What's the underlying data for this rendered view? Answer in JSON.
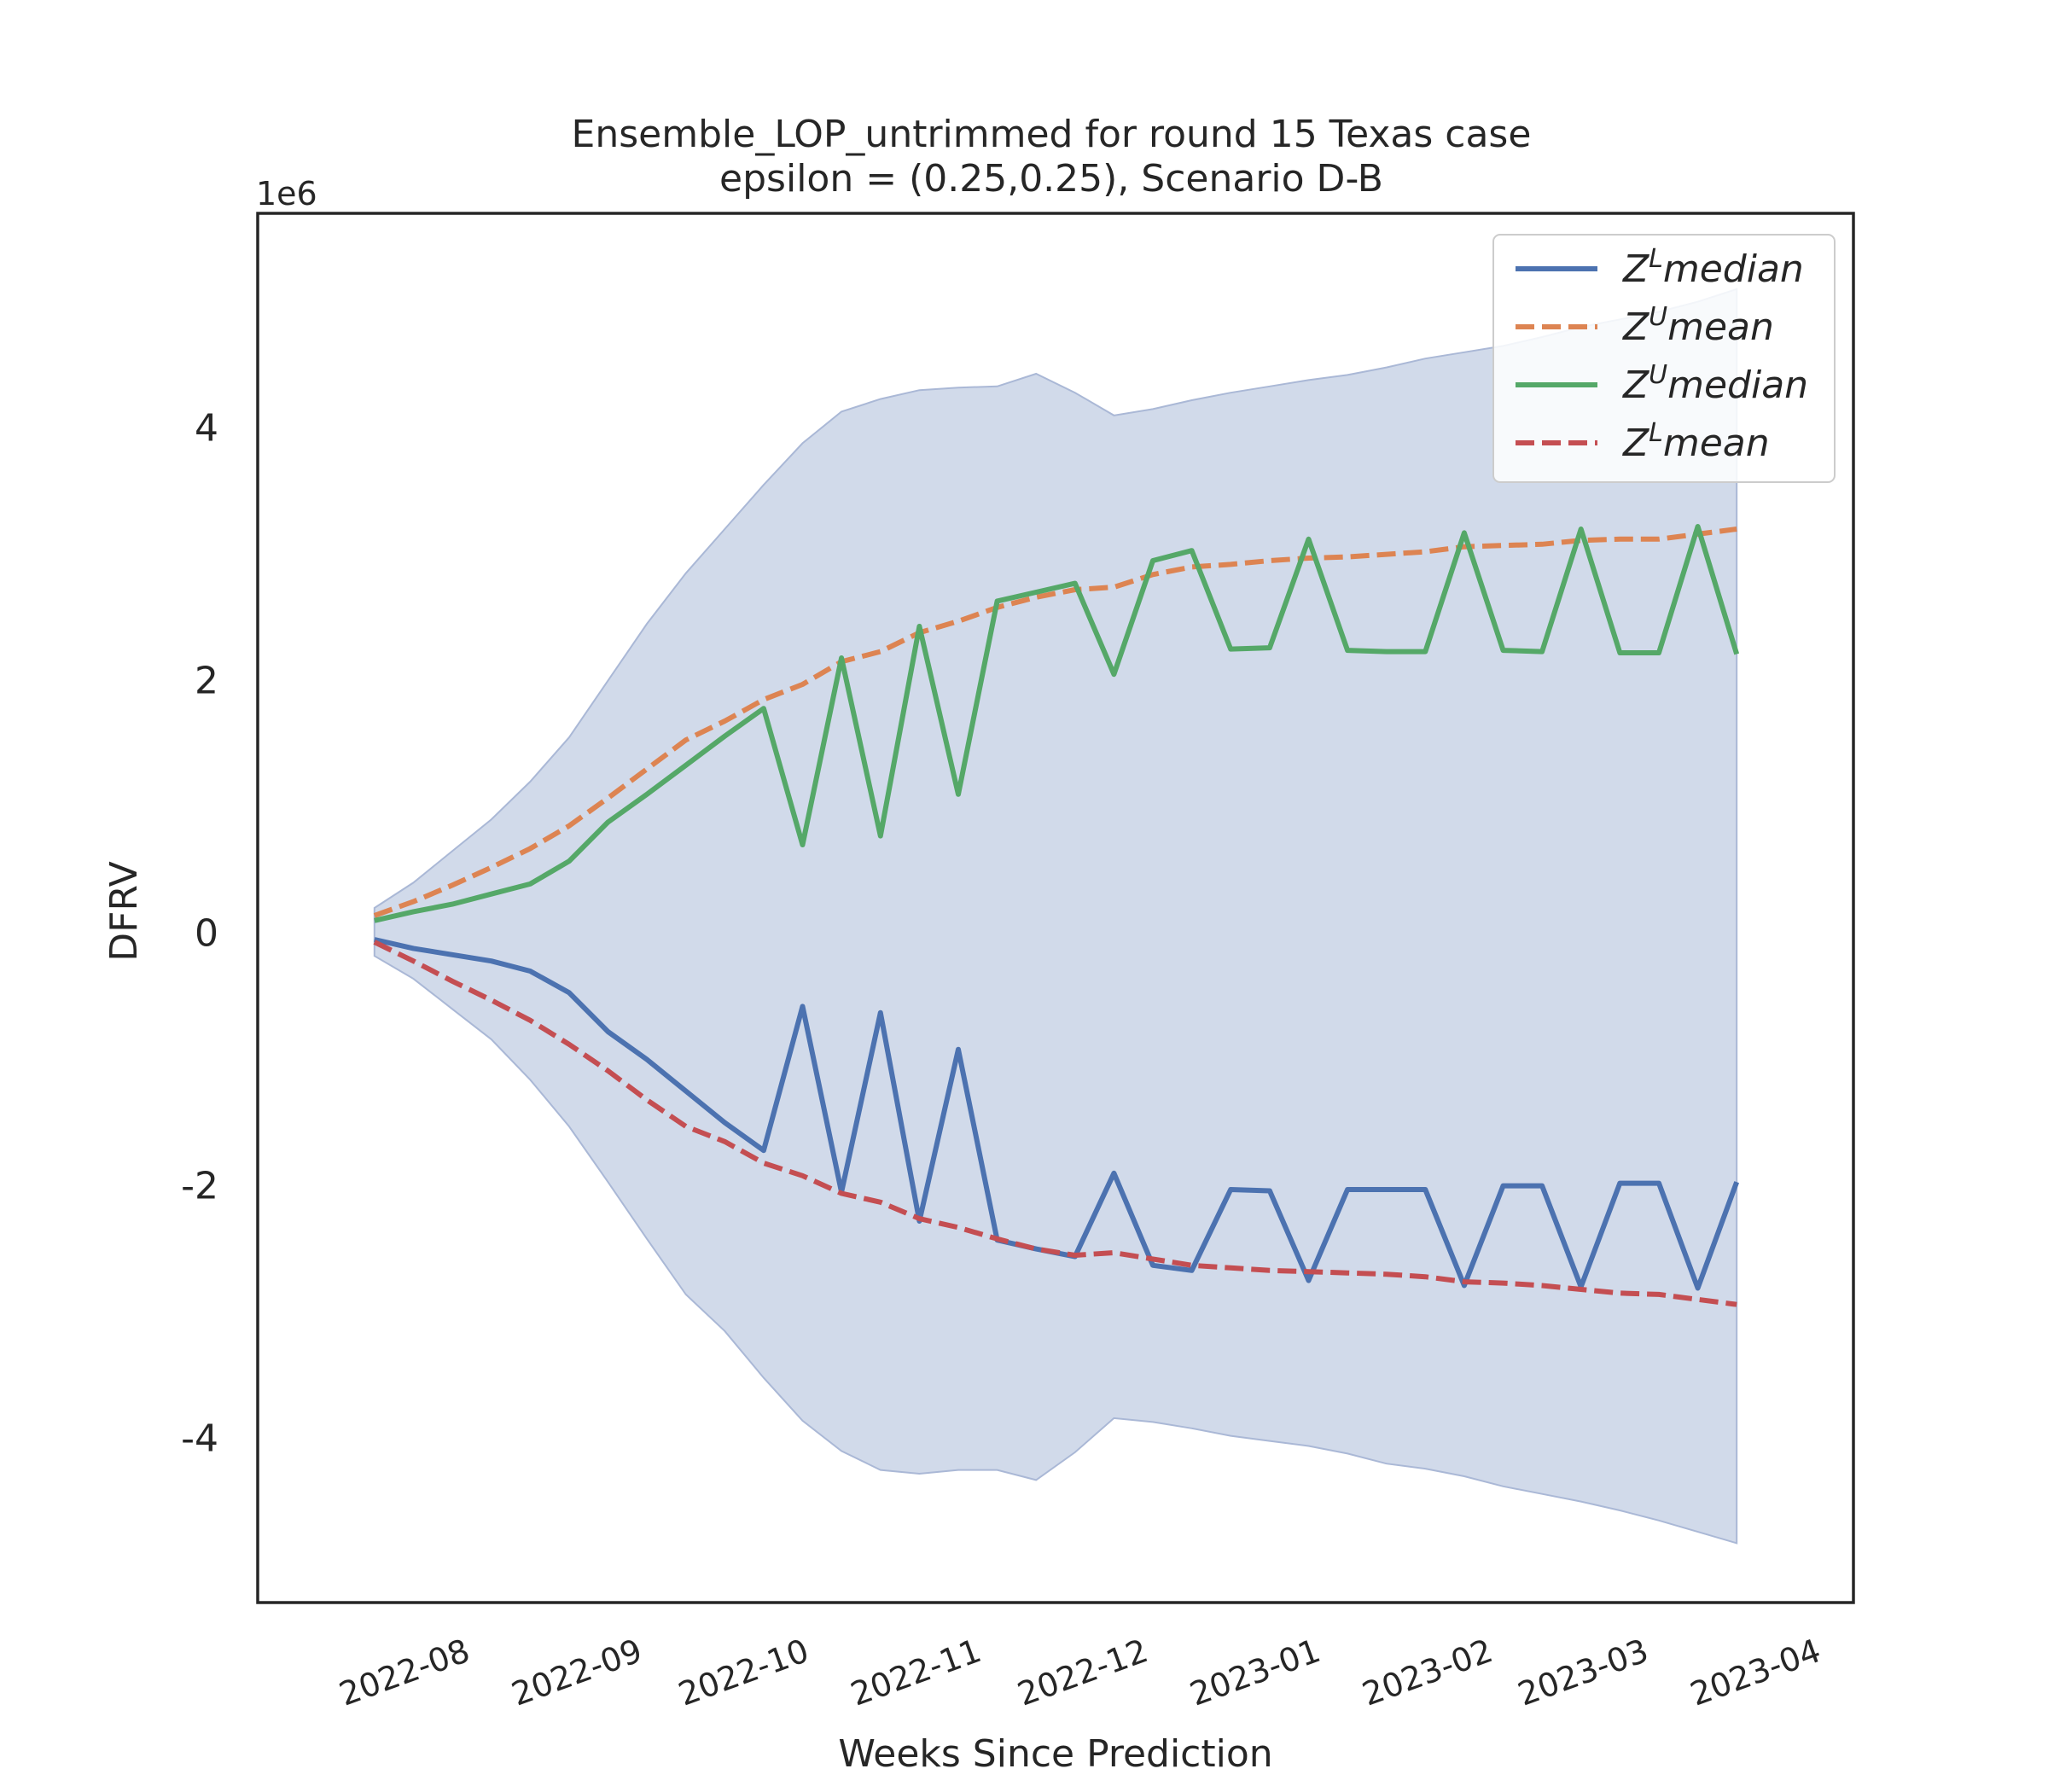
{
  "chart_data": {
    "type": "line",
    "title_line1": "Ensemble_LOP_untrimmed for round 15 Texas  case",
    "title_line2": "epsilon = (0.25,0.25), Scenario D-B",
    "xlabel": "Weeks Since Prediction",
    "ylabel": "DFRV",
    "y_offset_label": "1e6",
    "y_scale": 1000000,
    "xlim": [
      "2022-07-03",
      "2023-04-16"
    ],
    "ylim": [
      -5.3,
      5.7
    ],
    "grid": false,
    "legend_position": "top-right",
    "x_tick_labels": [
      "2022-08",
      "2022-09",
      "2022-10",
      "2022-11",
      "2022-12",
      "2023-01",
      "2023-02",
      "2023-03",
      "2023-04"
    ],
    "x_tick_dates": [
      "2022-08-01",
      "2022-09-01",
      "2022-10-01",
      "2022-11-01",
      "2022-12-01",
      "2023-01-01",
      "2023-02-01",
      "2023-03-01",
      "2023-04-01"
    ],
    "y_ticks": [
      -4,
      -2,
      0,
      2,
      4
    ],
    "y_tick_labels": [
      "-4",
      "-2",
      "0",
      "2",
      "4"
    ],
    "x": [
      "2022-07-24",
      "2022-07-31",
      "2022-08-07",
      "2022-08-14",
      "2022-08-21",
      "2022-08-28",
      "2022-09-04",
      "2022-09-11",
      "2022-09-18",
      "2022-09-25",
      "2022-10-02",
      "2022-10-09",
      "2022-10-16",
      "2022-10-23",
      "2022-10-30",
      "2022-11-06",
      "2022-11-13",
      "2022-11-20",
      "2022-11-27",
      "2022-12-04",
      "2022-12-11",
      "2022-12-18",
      "2022-12-25",
      "2023-01-01",
      "2023-01-08",
      "2023-01-15",
      "2023-01-22",
      "2023-01-29",
      "2023-02-05",
      "2023-02-12",
      "2023-02-19",
      "2023-02-26",
      "2023-03-05",
      "2023-03-12",
      "2023-03-19",
      "2023-03-26"
    ],
    "band": {
      "color": "#d1daea",
      "edge_color": "#aab8d6",
      "upper": [
        0.2,
        0.4,
        0.65,
        0.9,
        1.2,
        1.55,
        2.0,
        2.45,
        2.85,
        3.2,
        3.55,
        3.88,
        4.13,
        4.23,
        4.3,
        4.32,
        4.33,
        4.43,
        4.28,
        4.1,
        4.15,
        4.22,
        4.28,
        4.33,
        4.38,
        4.42,
        4.48,
        4.55,
        4.6,
        4.65,
        4.72,
        4.8,
        4.86,
        4.92,
        5.0,
        5.1
      ],
      "lower": [
        -0.18,
        -0.36,
        -0.6,
        -0.84,
        -1.16,
        -1.53,
        -1.97,
        -2.42,
        -2.86,
        -3.15,
        -3.52,
        -3.86,
        -4.1,
        -4.25,
        -4.28,
        -4.25,
        -4.25,
        -4.33,
        -4.11,
        -3.84,
        -3.87,
        -3.92,
        -3.98,
        -4.02,
        -4.06,
        -4.12,
        -4.2,
        -4.24,
        -4.3,
        -4.38,
        -4.44,
        -4.5,
        -4.57,
        -4.65,
        -4.74,
        -4.83
      ]
    },
    "series": [
      {
        "name": "$Z^L median$",
        "legend_base": "Z",
        "legend_sup": "L",
        "legend_word": "median",
        "color": "#4c72b0",
        "dash": "solid",
        "values": [
          -0.05,
          -0.12,
          -0.17,
          -0.22,
          -0.3,
          -0.47,
          -0.78,
          -1.0,
          -1.25,
          -1.5,
          -1.72,
          -0.58,
          -2.05,
          -0.63,
          -2.28,
          -0.92,
          -2.43,
          -2.5,
          -2.56,
          -1.9,
          -2.63,
          -2.67,
          -2.03,
          -2.04,
          -2.75,
          -2.03,
          -2.03,
          -2.03,
          -2.79,
          -2.0,
          -2.0,
          -2.8,
          -1.98,
          -1.98,
          -2.81,
          -1.97
        ]
      },
      {
        "name": "$Z^U mean$",
        "legend_base": "Z",
        "legend_sup": "U",
        "legend_word": "mean",
        "color": "#dd8452",
        "dash": "dashed",
        "values": [
          0.14,
          0.25,
          0.38,
          0.52,
          0.67,
          0.85,
          1.07,
          1.3,
          1.53,
          1.68,
          1.85,
          1.97,
          2.15,
          2.23,
          2.38,
          2.47,
          2.58,
          2.66,
          2.72,
          2.74,
          2.84,
          2.9,
          2.92,
          2.95,
          2.97,
          2.98,
          3.0,
          3.02,
          3.06,
          3.07,
          3.08,
          3.11,
          3.12,
          3.12,
          3.16,
          3.2
        ]
      },
      {
        "name": "$Z^U median$",
        "legend_base": "Z",
        "legend_sup": "U",
        "legend_word": "median",
        "color": "#55a868",
        "dash": "solid",
        "values": [
          0.1,
          0.17,
          0.23,
          0.31,
          0.39,
          0.57,
          0.88,
          1.1,
          1.33,
          1.56,
          1.78,
          0.7,
          2.18,
          0.77,
          2.43,
          1.1,
          2.63,
          2.7,
          2.77,
          2.05,
          2.95,
          3.03,
          2.25,
          2.26,
          3.12,
          2.24,
          2.23,
          2.23,
          3.17,
          2.24,
          2.23,
          3.2,
          2.22,
          2.22,
          3.22,
          2.21
        ]
      },
      {
        "name": "$Z^L mean$",
        "legend_base": "Z",
        "legend_sup": "L",
        "legend_word": "mean",
        "color": "#c44e52",
        "dash": "dashed",
        "values": [
          -0.07,
          -0.22,
          -0.38,
          -0.53,
          -0.69,
          -0.88,
          -1.09,
          -1.32,
          -1.53,
          -1.65,
          -1.82,
          -1.92,
          -2.06,
          -2.13,
          -2.26,
          -2.33,
          -2.42,
          -2.5,
          -2.55,
          -2.53,
          -2.58,
          -2.63,
          -2.65,
          -2.67,
          -2.68,
          -2.69,
          -2.7,
          -2.72,
          -2.76,
          -2.77,
          -2.79,
          -2.82,
          -2.85,
          -2.86,
          -2.9,
          -2.94
        ]
      }
    ]
  }
}
